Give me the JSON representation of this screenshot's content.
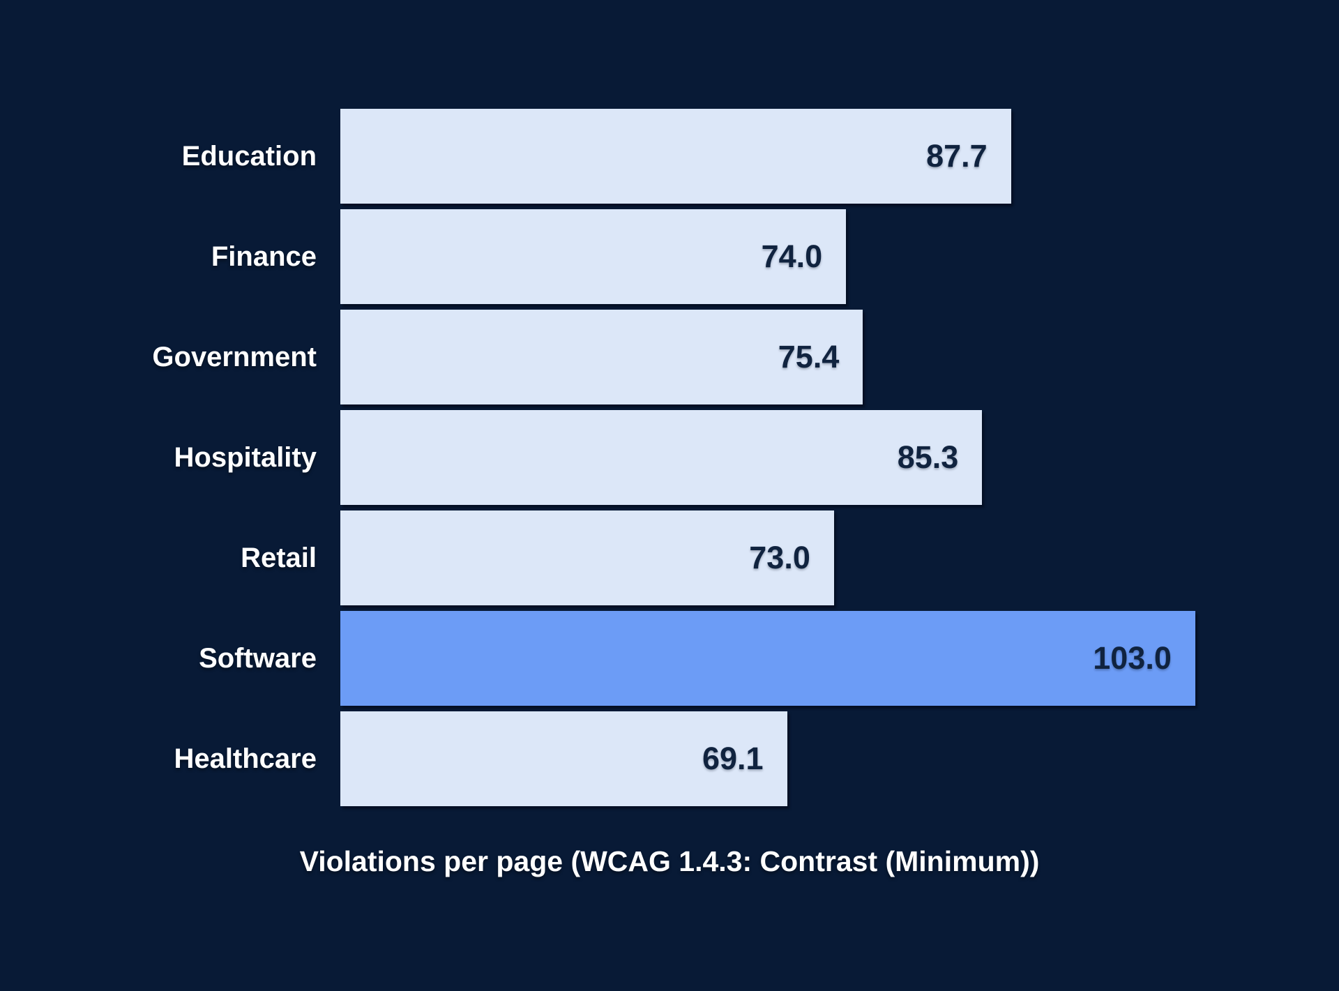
{
  "chart_data": {
    "type": "bar",
    "orientation": "horizontal",
    "title": "",
    "xlabel": "Violations per page (WCAG 1.4.3: Contrast (Minimum))",
    "ylabel": "",
    "categories": [
      "Education",
      "Finance",
      "Government",
      "Hospitality",
      "Retail",
      "Software",
      "Healthcare"
    ],
    "values": [
      87.7,
      74.0,
      75.4,
      85.3,
      73.0,
      103.0,
      69.1
    ],
    "value_labels": [
      "87.7",
      "74.0",
      "75.4",
      "85.3",
      "73.0",
      "103.0",
      "69.1"
    ],
    "highlighted_category": "Software",
    "xlim": [
      32,
      103.7
    ],
    "grid": false,
    "legend_position": "none",
    "value_label_position": "inside-end",
    "colors": {
      "background": "#081A36",
      "bar_default": "#DCE7F8",
      "bar_highlight": "#6C9CF6",
      "category_label": "#FFFFFF",
      "value_label": "#10233F",
      "axis_label": "#FFFFFF"
    }
  }
}
